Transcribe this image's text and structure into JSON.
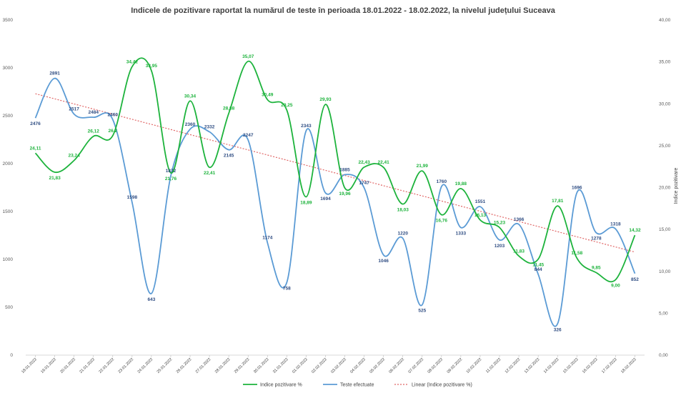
{
  "chart_data": {
    "type": "line",
    "title": "Indicele de pozitivare  raportat la numărul  de teste în perioada  18.01.2022 - 18.02.2022, la nivelul județului  Suceava",
    "categories": [
      "18.01.2022",
      "19.01.2022",
      "20.01.2022",
      "21.01.2022",
      "22.01.2022",
      "23.01.2022",
      "24.01.2022",
      "25.01.2022",
      "26.01.2022",
      "27.01.2022",
      "28.01.2022",
      "29.01.2022",
      "30.01.2022",
      "31.01.2022",
      "01.02.2022",
      "02.02.2022",
      "03.02.2022",
      "04.02.2022",
      "05.02.2022",
      "06.02.2022",
      "07.02.2022",
      "08.02.2022",
      "09.02.2022",
      "10.02.2022",
      "11.02.2022",
      "12.02.2022",
      "13.02.2022",
      "14.02.2022",
      "15.02.2022",
      "16.02.2022",
      "17.02.2022",
      "18.02.2022"
    ],
    "y_left": {
      "range": [
        0,
        3500
      ],
      "step": 500,
      "ticks": [
        "0",
        "500",
        "1000",
        "1500",
        "2000",
        "2500",
        "3000",
        "3500"
      ]
    },
    "y_right": {
      "range": [
        0,
        40
      ],
      "step": 5,
      "ticks": [
        "0,00",
        "5,00",
        "10,00",
        "15,00",
        "20,00",
        "25,00",
        "30,00",
        "35,00",
        "40,00"
      ],
      "label": "Indice pozitivare"
    },
    "series": [
      {
        "name": "Indice pozitivare %",
        "axis": "right",
        "color": "#1db33c",
        "values": [
          24.11,
          21.83,
          23.24,
          26.12,
          26.2,
          34.42,
          33.95,
          21.76,
          30.34,
          22.41,
          28.88,
          35.07,
          30.49,
          29.25,
          18.89,
          29.93,
          19.96,
          22.43,
          22.41,
          18.03,
          21.99,
          16.76,
          19.88,
          16.13,
          15.23,
          11.83,
          11.45,
          17.81,
          11.58,
          9.85,
          9.0,
          14.32
        ],
        "labels": [
          "24,11",
          "21,83",
          "23,24",
          "26,12",
          "26,2",
          "34,42",
          "33,95",
          "21,76",
          "30,34",
          "22,41",
          "28,88",
          "35,07",
          "30,49",
          "29,25",
          "18,89",
          "29,93",
          "19,96",
          "22,43",
          "22,41",
          "18,03",
          "21,99",
          "16,76",
          "19,88",
          "16,13",
          "15,23",
          "11,83",
          "11,45",
          "17,81",
          "11,58",
          "9,85",
          "9,00",
          "14,32"
        ]
      },
      {
        "name": "Teste efectuate",
        "axis": "left",
        "color": "#5b9bd5",
        "values": [
          2476,
          2891,
          2517,
          2484,
          2460,
          1598,
          643,
          1872,
          2360,
          2332,
          2145,
          2247,
          1174,
          758,
          2343,
          1694,
          1885,
          1747,
          1046,
          1220,
          525,
          1760,
          1333,
          1551,
          1203,
          1366,
          844,
          326,
          1696,
          1278,
          1318,
          852
        ],
        "labels": [
          "2476",
          "2891",
          "2517",
          "2484",
          "2460",
          "1598",
          "643",
          "1872",
          "2360",
          "2332",
          "2145",
          "2247",
          "1174",
          "758",
          "2343",
          "1694",
          "1885",
          "1747",
          "1046",
          "1220",
          "525",
          "1760",
          "1333",
          "1551",
          "1203",
          "1366",
          "844",
          "326",
          "1696",
          "1278",
          "1318",
          "852"
        ]
      },
      {
        "name": "Linear (Indice pozitivare %)",
        "axis": "right",
        "color": "#e06666",
        "type": "trendline",
        "start": 31.2,
        "end": 12.3
      }
    ],
    "legend": {
      "placement": "bottom-center",
      "items": [
        "Indice pozitivare %",
        "Teste efectuate",
        "Linear (Indice pozitivare %)"
      ]
    },
    "grid": false
  }
}
